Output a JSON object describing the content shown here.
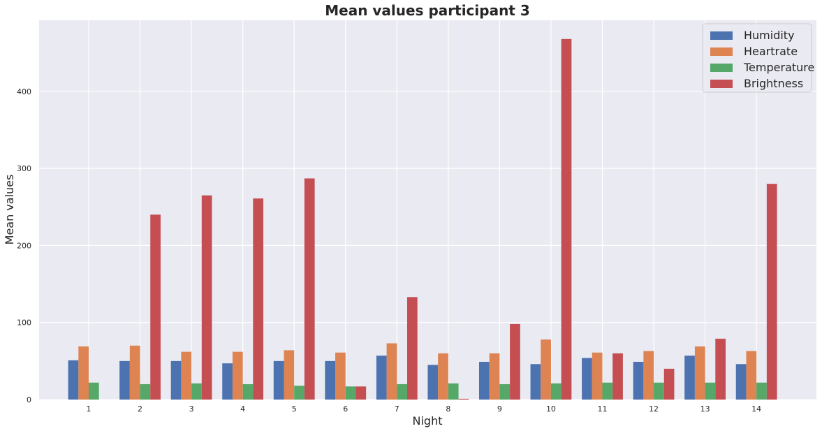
{
  "chart_data": {
    "type": "bar",
    "title": "Mean values participant 3",
    "xlabel": "Night",
    "ylabel": "Mean values",
    "categories": [
      "1",
      "2",
      "3",
      "4",
      "5",
      "6",
      "7",
      "8",
      "9",
      "10",
      "11",
      "12",
      "13",
      "14"
    ],
    "series": [
      {
        "name": "Humidity",
        "color": "#4c72b0",
        "values": [
          51,
          50,
          50,
          47,
          50,
          50,
          57,
          45,
          49,
          46,
          54,
          49,
          57,
          46
        ]
      },
      {
        "name": "Heartrate",
        "color": "#dd8452",
        "values": [
          69,
          70,
          62,
          62,
          64,
          61,
          73,
          60,
          60,
          78,
          61,
          63,
          69,
          63
        ]
      },
      {
        "name": "Temperature",
        "color": "#55a868",
        "values": [
          22,
          20,
          21,
          20,
          18,
          17,
          20,
          21,
          20,
          21,
          22,
          22,
          22,
          22
        ]
      },
      {
        "name": "Brightness",
        "color": "#c44e52",
        "values": [
          0,
          240,
          265,
          261,
          287,
          17,
          133,
          1,
          98,
          468,
          60,
          40,
          79,
          280
        ]
      }
    ],
    "yticks": [
      0,
      100,
      200,
      300,
      400
    ],
    "ylim": [
      0,
      492
    ],
    "grid": true,
    "legend_position": "top-right",
    "plot_background": "#eaeaf2",
    "grid_color": "#ffffff"
  }
}
